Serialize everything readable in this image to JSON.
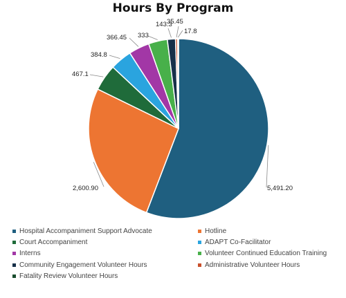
{
  "chart_data": {
    "type": "pie",
    "title": "Hours By Program",
    "legend_position": "bottom",
    "slices": [
      {
        "label": "Hospital Accompaniment Support Advocate",
        "value": 5491.2,
        "display": "5,491.20",
        "color": "#1f5f80"
      },
      {
        "label": "Hotline",
        "value": 2600.9,
        "display": "2,600.90",
        "color": "#ed7532"
      },
      {
        "label": "Court Accompaniment",
        "value": 467.1,
        "display": "467.1",
        "color": "#1f6b3a"
      },
      {
        "label": "ADAPT Co-Facilitator",
        "value": 384.8,
        "display": "384.8",
        "color": "#2aa4df"
      },
      {
        "label": "Interns",
        "value": 366.45,
        "display": "366.45",
        "color": "#a237a6"
      },
      {
        "label": "Volunteer Continued Education Training",
        "value": 333,
        "display": "333",
        "color": "#48b04a"
      },
      {
        "label": "Community Engagement Volunteer Hours",
        "value": 143.3,
        "display": "143.3",
        "color": "#173049"
      },
      {
        "label": "Administrative Volunteer Hours",
        "value": 35.45,
        "display": "35.45",
        "color": "#c9502b"
      },
      {
        "label": "Fatality Review Volunteer Hours",
        "value": 17.8,
        "display": "17.8",
        "color": "#1a4d2e"
      }
    ]
  }
}
